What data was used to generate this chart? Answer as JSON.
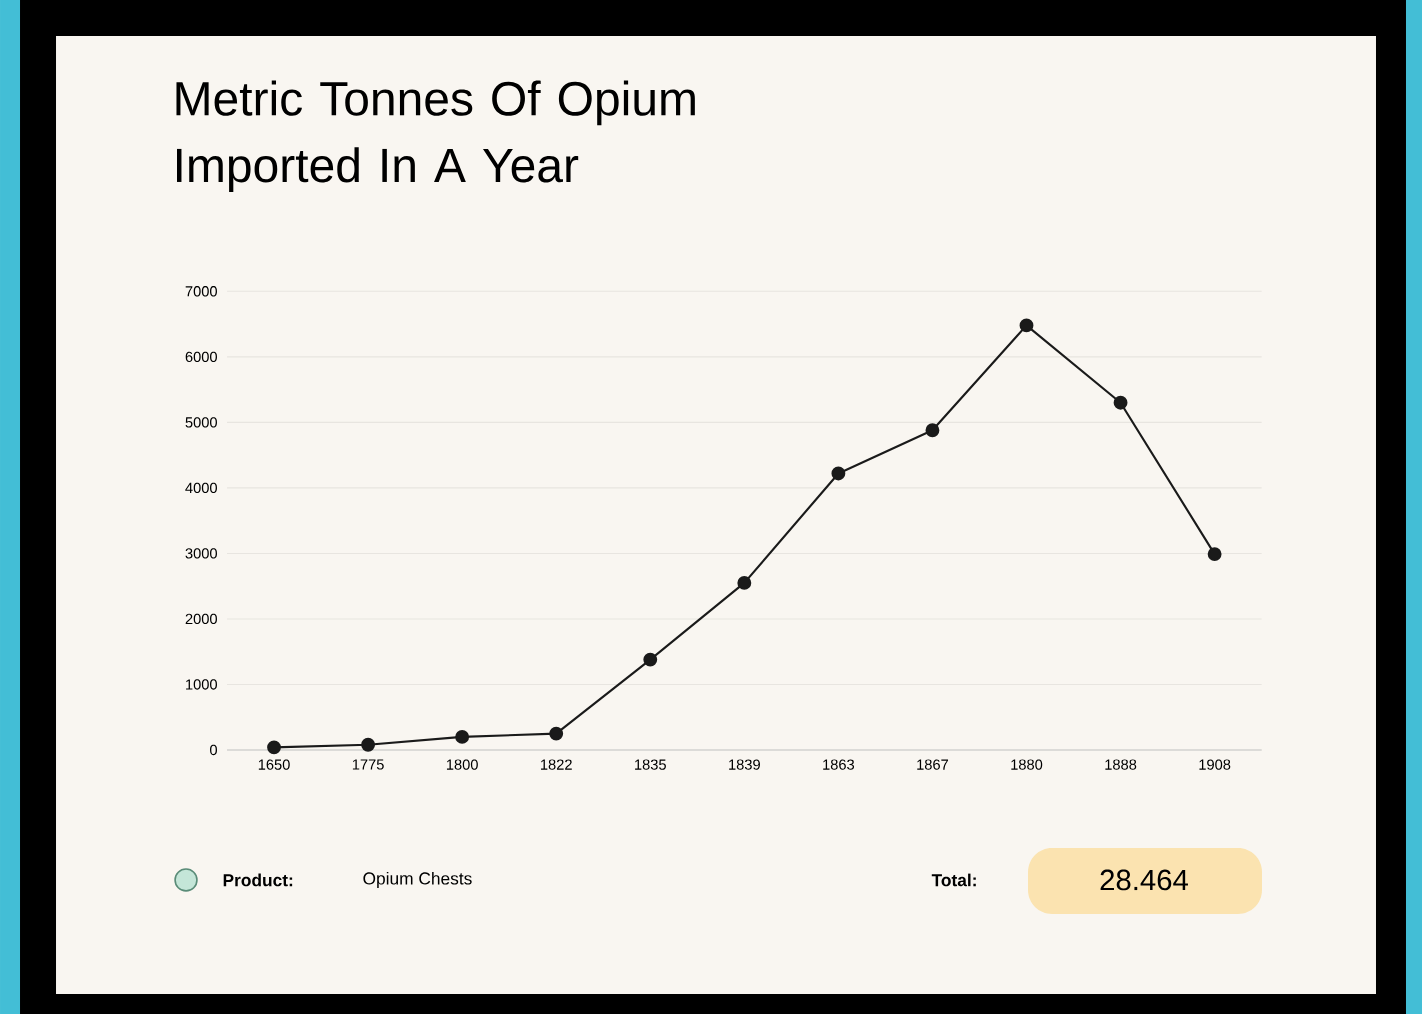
{
  "chart_data": {
    "type": "line",
    "title": "Metric Tonnes Of Opium Imported In A Year",
    "categories": [
      "1650",
      "1775",
      "1800",
      "1822",
      "1835",
      "1839",
      "1863",
      "1867",
      "1880",
      "1888",
      "1908"
    ],
    "series": [
      {
        "color": "#1a1a1a",
        "values": [
          40,
          80,
          200,
          250,
          1380,
          2550,
          4220,
          4880,
          6480,
          5300,
          2990
        ]
      }
    ],
    "ylim": [
      0,
      7000
    ],
    "yticks": [
      0,
      1000,
      2000,
      3000,
      4000,
      5000,
      6000,
      7000
    ],
    "grid": "y",
    "marker": "circle",
    "line_style": "solid",
    "annotations": [
      "Product:",
      "Opium Chests",
      "Total:",
      "28.464"
    ]
  }
}
